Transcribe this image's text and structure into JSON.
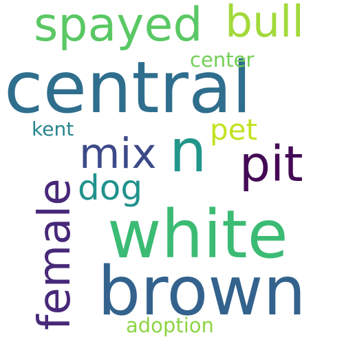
{
  "words": {
    "central": {
      "text": "central",
      "color": "#2f6e8d"
    },
    "brown": {
      "text": "brown",
      "color": "#33628d"
    },
    "white": {
      "text": "white",
      "color": "#3bbb74"
    },
    "female": {
      "text": "female",
      "color": "#482979"
    },
    "spayed": {
      "text": "spayed",
      "color": "#5ac864"
    },
    "n": {
      "text": "n",
      "color": "#21968b"
    },
    "pit": {
      "text": "pit",
      "color": "#440a55"
    },
    "mix": {
      "text": "mix",
      "color": "#3d4a89"
    },
    "bull": {
      "text": "bull",
      "color": "#a2d93b"
    },
    "dog": {
      "text": "dog",
      "color": "#20928c"
    },
    "pet": {
      "text": "pet",
      "color": "#c4e221"
    },
    "center": {
      "text": "center",
      "color": "#73cf55"
    },
    "kent": {
      "text": "kent",
      "color": "#25848e"
    },
    "adoption": {
      "text": "adoption",
      "color": "#8dd544"
    }
  }
}
